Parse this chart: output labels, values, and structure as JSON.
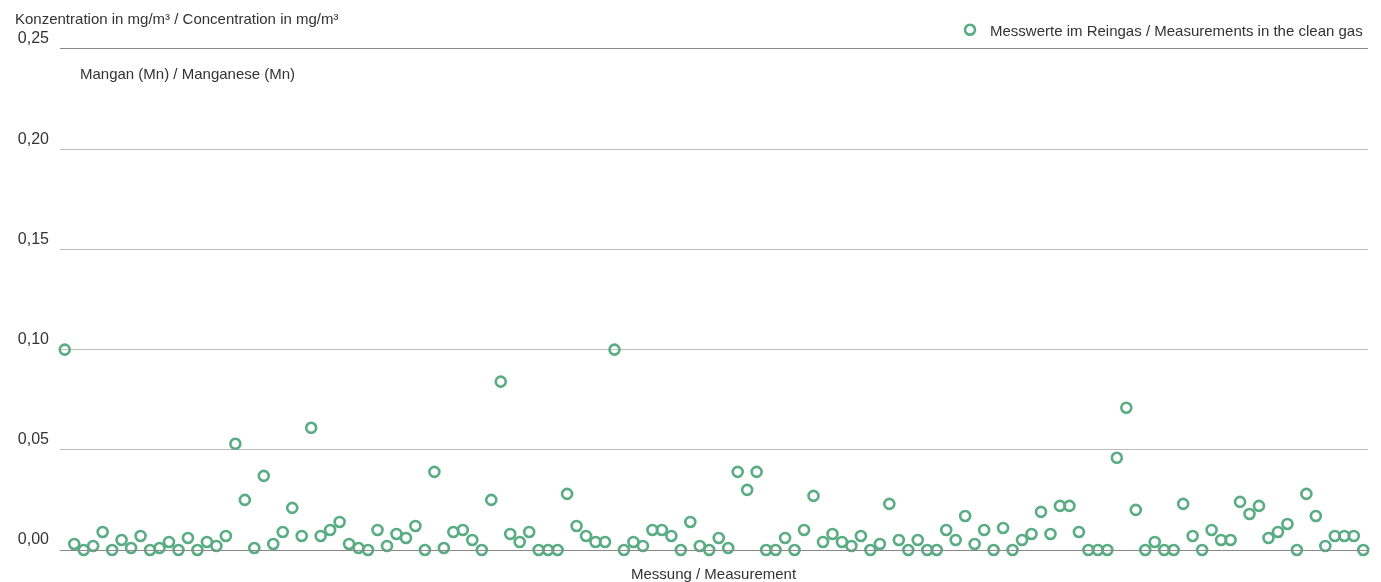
{
  "chart_data": {
    "type": "scatter",
    "title": "Mangan (Mn) / Manganese (Mn)",
    "xlabel": "Messung / Measurement",
    "ylabel": "Konzentration in mg/m³ / Concentration in mg/m³",
    "categories": [
      null,
      null,
      null,
      null,
      null,
      null,
      null,
      null,
      null,
      null,
      null,
      null,
      null,
      null,
      null,
      null,
      null,
      null,
      null,
      null,
      null,
      null,
      null,
      null,
      null,
      null,
      null,
      null,
      null,
      null,
      null,
      null,
      null,
      null,
      null,
      null,
      null,
      null,
      null,
      null,
      null,
      null,
      null,
      null,
      null,
      null,
      null,
      null,
      null,
      null,
      null,
      null,
      null,
      null,
      null,
      null,
      null,
      null,
      null,
      null,
      null,
      null,
      null,
      null,
      null,
      null,
      null,
      null,
      null,
      null,
      null,
      null,
      null,
      null,
      null,
      null,
      null,
      null,
      null,
      null,
      null,
      null,
      null,
      null,
      null,
      null,
      null,
      null,
      null,
      null,
      null,
      null,
      null,
      null,
      null,
      null,
      null,
      null,
      null,
      null,
      null,
      null,
      null,
      null,
      null,
      null,
      null,
      null,
      null,
      null,
      null,
      null,
      null,
      null,
      null,
      null,
      null,
      null,
      null,
      null,
      null,
      null,
      null,
      null,
      null,
      null,
      null,
      null,
      null,
      null,
      null,
      null,
      null,
      null,
      null,
      null,
      null,
      null
    ],
    "series": [
      {
        "name": "Messwerte im Reingas / Measurements in the clean gas",
        "color": "#5aac84",
        "values": [
          0.1,
          0.003,
          0.0,
          0.002,
          0.009,
          0.0,
          0.005,
          0.001,
          0.007,
          0.0,
          0.001,
          0.004,
          0.0,
          0.006,
          0.0,
          0.004,
          0.002,
          0.007,
          0.053,
          0.025,
          0.001,
          0.037,
          0.003,
          0.009,
          0.021,
          0.007,
          0.061,
          0.007,
          0.01,
          0.014,
          0.003,
          0.001,
          0.0,
          0.01,
          0.002,
          0.008,
          0.006,
          0.012,
          0.0,
          0.039,
          0.001,
          0.009,
          0.01,
          0.005,
          0.0,
          0.025,
          0.084,
          0.008,
          0.004,
          0.009,
          0.0,
          0.0,
          0.0,
          0.028,
          0.012,
          0.007,
          0.004,
          0.004,
          0.1,
          0.0,
          0.004,
          0.002,
          0.01,
          0.01,
          0.007,
          0.0,
          0.014,
          0.002,
          0.0,
          0.006,
          0.001,
          0.039,
          0.03,
          0.039,
          0.0,
          0.0,
          0.006,
          0.0,
          0.01,
          0.027,
          0.004,
          0.008,
          0.004,
          0.002,
          0.007,
          0.0,
          0.003,
          0.023,
          0.005,
          0.0,
          0.005,
          0.0,
          0.0,
          0.01,
          0.005,
          0.017,
          0.003,
          0.01,
          0.0,
          0.011,
          0.0,
          0.005,
          0.008,
          0.019,
          0.008,
          0.022,
          0.022,
          0.009,
          0.0,
          0.0,
          0.0,
          0.046,
          0.071,
          0.02,
          0.0,
          0.004,
          0.0,
          0.0,
          0.023,
          0.007,
          0.0,
          0.01,
          0.005,
          0.005,
          0.024,
          0.018,
          0.022,
          0.006,
          0.009,
          0.013,
          0.0,
          0.028,
          0.017,
          0.002,
          0.007,
          0.007,
          0.007,
          0.0
        ]
      }
    ],
    "ylim": [
      0,
      0.25
    ],
    "yticks": [
      {
        "value": 0,
        "label": "0,00"
      },
      {
        "value": 0.05,
        "label": "0,05"
      },
      {
        "value": 0.1,
        "label": "0,10"
      },
      {
        "value": 0.15,
        "label": "0,15"
      },
      {
        "value": 0.2,
        "label": "0,20"
      },
      {
        "value": 0.25,
        "label": "0,25"
      }
    ],
    "grid": "y",
    "legend": "top right",
    "marker": "circle"
  }
}
